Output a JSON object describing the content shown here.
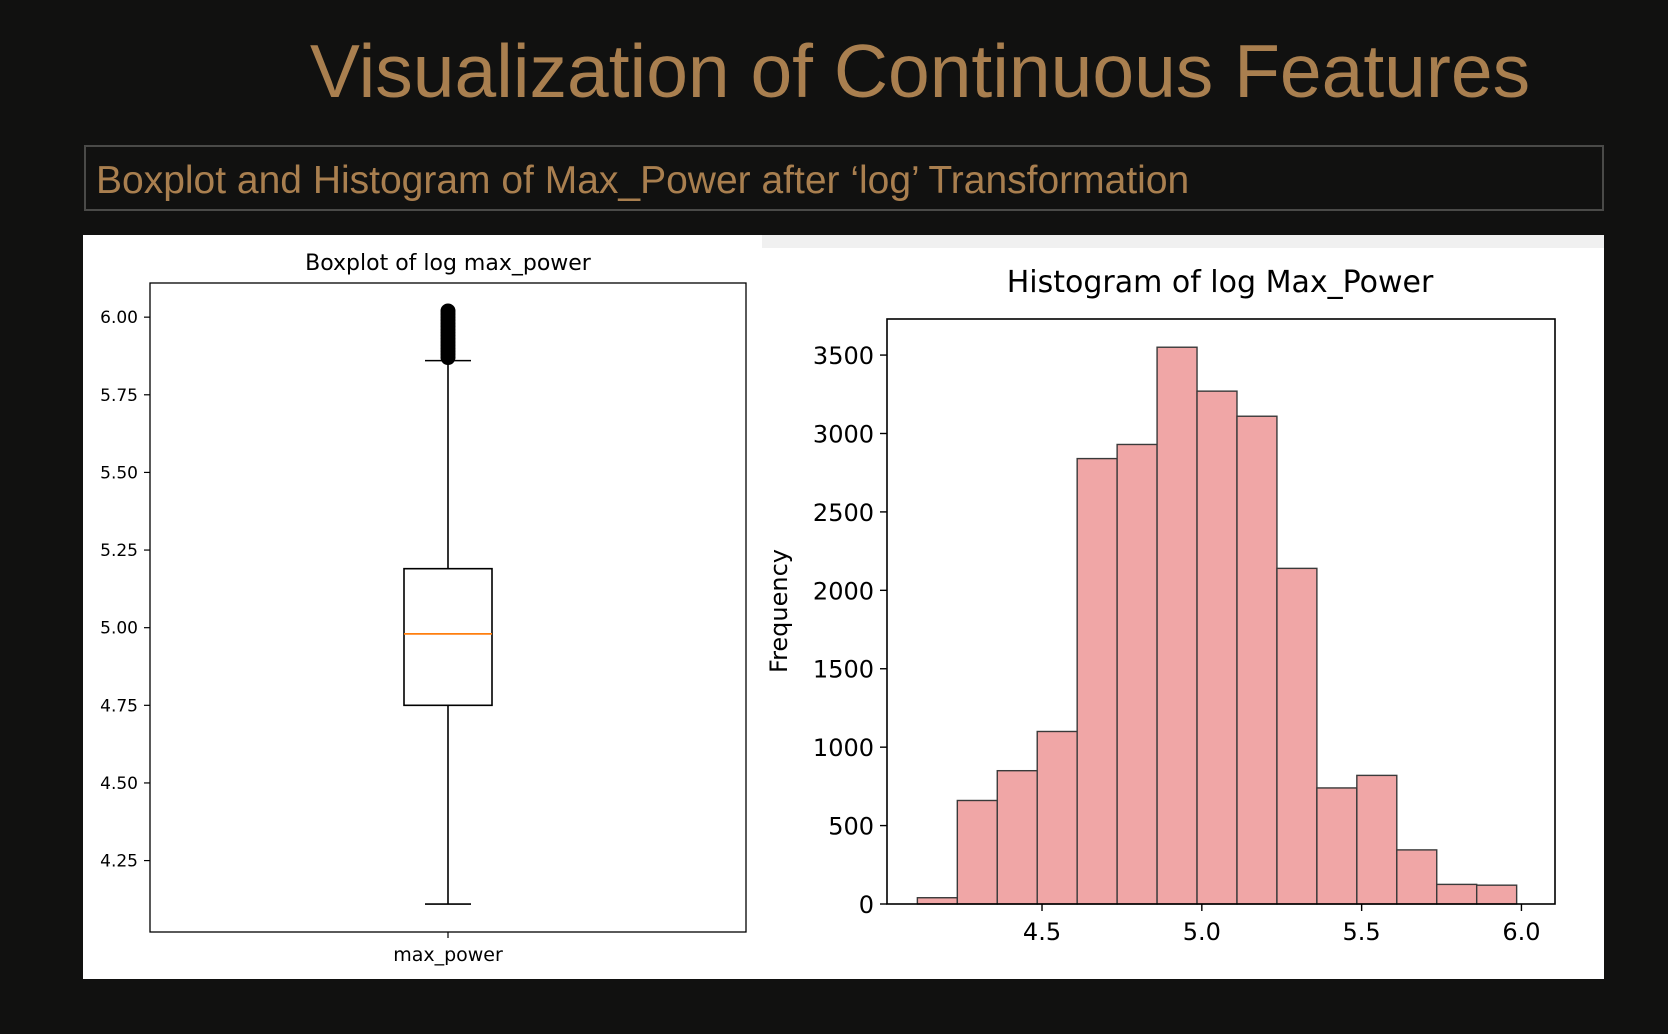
{
  "slide": {
    "title": "Visualization of Continuous Features",
    "subtitle": "Boxplot and Histogram of Max_Power after ‘log’ Transformation"
  },
  "colors": {
    "background": "#111110",
    "accent_text": "#a97f4f",
    "bar_fill": "#f0a6a6",
    "median_line": "#ff7f0e"
  },
  "chart_data": [
    {
      "type": "box",
      "title": "Boxplot of log max_power",
      "xlabel": "",
      "ylabel": "",
      "category": "max_power",
      "ylim": [
        4.02,
        6.11
      ],
      "yticks": [
        4.25,
        4.5,
        4.75,
        5.0,
        5.25,
        5.5,
        5.75,
        6.0
      ],
      "ytick_labels": [
        "4.25",
        "4.50",
        "4.75",
        "5.00",
        "5.25",
        "5.50",
        "5.75",
        "6.00"
      ],
      "whisker_low": 4.11,
      "q1": 4.75,
      "median": 4.98,
      "q3": 5.19,
      "whisker_high": 5.86,
      "outliers": [
        5.87,
        5.88,
        5.89,
        5.9,
        5.91,
        5.92,
        5.93,
        5.94,
        5.95,
        5.96,
        5.97,
        5.98,
        5.99,
        6.0,
        6.01,
        6.02
      ],
      "grid": false
    },
    {
      "type": "bar",
      "subtype": "histogram",
      "title": "Histogram of log Max_Power",
      "xlabel": "",
      "ylabel": "Frequency",
      "bin_width": 0.125,
      "bin_start": 4.11,
      "values": [
        40,
        660,
        850,
        1100,
        2840,
        2930,
        3550,
        3270,
        3110,
        2140,
        740,
        820,
        345,
        125,
        120
      ],
      "xlim": [
        4.015,
        6.105
      ],
      "ylim": [
        0,
        3730
      ],
      "xticks": [
        4.5,
        5.0,
        5.5,
        6.0
      ],
      "xtick_labels": [
        "4.5",
        "5.0",
        "5.5",
        "6.0"
      ],
      "yticks": [
        0,
        500,
        1000,
        1500,
        2000,
        2500,
        3000,
        3500
      ],
      "ytick_labels": [
        "0",
        "500",
        "1000",
        "1500",
        "2000",
        "2500",
        "3000",
        "3500"
      ],
      "grid": false
    }
  ]
}
